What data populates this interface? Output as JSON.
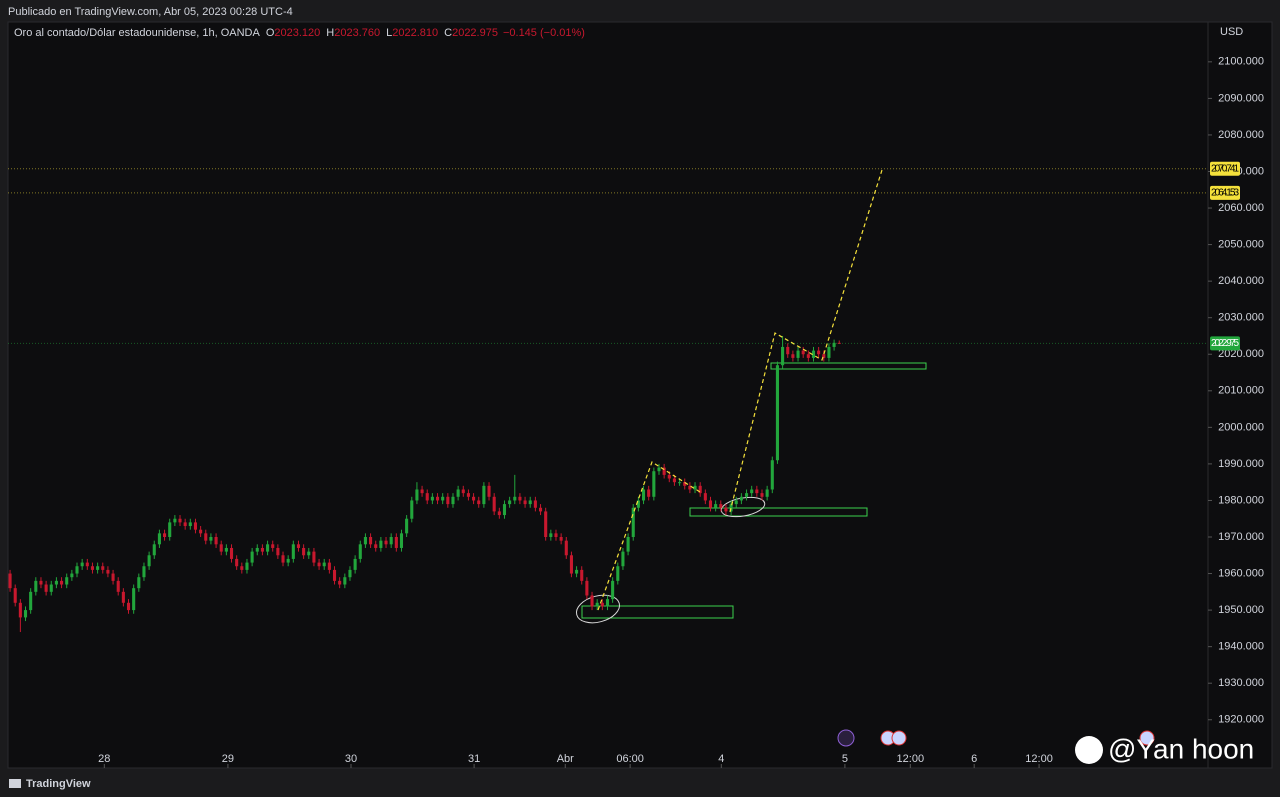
{
  "publisher_line": "Publicado en TradingView.com, Abr 05, 2023 00:28 UTC-4",
  "footer_brand": "TradingView",
  "watermark": "@Yan hoon",
  "chart_data": {
    "type": "candlestick",
    "symbol": "Oro al contado/Dólar estadounidense, 1h, OANDA",
    "ohlc_legend": [
      {
        "key": "O",
        "text": "2023.120"
      },
      {
        "key": "H",
        "text": "2023.760"
      },
      {
        "key": "L",
        "text": "2022.810"
      },
      {
        "key": "C",
        "text": "2022.975"
      }
    ],
    "change_text": "−0.145 (−0.01%)",
    "y_axis_label": "USD",
    "up_color": "#22a63c",
    "down_color": "#c8182e",
    "grid": false,
    "xlim": [
      -0.4,
      232.6
    ],
    "xticks": [
      {
        "value": 18.3,
        "label": "28"
      },
      {
        "value": 42.3,
        "label": "29"
      },
      {
        "value": 66.2,
        "label": "30"
      },
      {
        "value": 90.1,
        "label": "31"
      },
      {
        "value": 107.8,
        "label": "Abr"
      },
      {
        "value": 120.4,
        "label": "06:00"
      },
      {
        "value": 138.1,
        "label": "4"
      },
      {
        "value": 162.1,
        "label": "5"
      },
      {
        "value": 174.8,
        "label": "12:00"
      },
      {
        "value": 187.2,
        "label": "6"
      },
      {
        "value": 199.8,
        "label": "12:00"
      }
    ],
    "ylim": [
      1906.8,
      2110.9
    ],
    "yticks": [
      {
        "value": 1920,
        "label": "1920.000"
      },
      {
        "value": 1930,
        "label": "1930.000"
      },
      {
        "value": 1940,
        "label": "1940.000"
      },
      {
        "value": 1950,
        "label": "1950.000"
      },
      {
        "value": 1960,
        "label": "1960.000"
      },
      {
        "value": 1970,
        "label": "1970.000"
      },
      {
        "value": 1980,
        "label": "1980.000"
      },
      {
        "value": 1990,
        "label": "1990.000"
      },
      {
        "value": 2000,
        "label": "2000.000"
      },
      {
        "value": 2010,
        "label": "2010.000"
      },
      {
        "value": 2020,
        "label": "2020.000"
      },
      {
        "value": 2030,
        "label": "2030.000"
      },
      {
        "value": 2040,
        "label": "2040.000"
      },
      {
        "value": 2050,
        "label": "2050.000"
      },
      {
        "value": 2060,
        "label": "2060.000"
      },
      {
        "value": 2070,
        "label": "2070.000"
      },
      {
        "value": 2080,
        "label": "2080.000"
      },
      {
        "value": 2090,
        "label": "2090.000"
      },
      {
        "value": 2100,
        "label": "2100.000"
      }
    ],
    "price_lines": [
      {
        "value": 2070.741,
        "color": "#f5e13b"
      },
      {
        "value": 2064.153,
        "color": "#f5e13b"
      },
      {
        "value": 2022.975,
        "color": "#22a63c"
      }
    ],
    "open": [
      1960,
      1956,
      1952,
      1948,
      1950,
      1955,
      1958,
      1957,
      1955,
      1957,
      1958,
      1957,
      1959,
      1960,
      1962,
      1963,
      1962,
      1961,
      1962,
      1961,
      1960,
      1958,
      1955,
      1952,
      1950,
      1956,
      1959,
      1962,
      1965,
      1968,
      1971,
      1970,
      1974,
      1975,
      1974,
      1973,
      1974,
      1972,
      1971,
      1969,
      1970,
      1968,
      1966,
      1967,
      1964,
      1962,
      1961,
      1963,
      1966,
      1967,
      1966,
      1968,
      1967,
      1965,
      1963,
      1964,
      1968,
      1967,
      1965,
      1966,
      1963,
      1962,
      1963,
      1961,
      1958,
      1957,
      1959,
      1961,
      1964,
      1968,
      1970,
      1968,
      1967,
      1969,
      1968,
      1970,
      1967,
      1971,
      1975,
      1980,
      1983,
      1982,
      1980,
      1981,
      1980,
      1981,
      1979,
      1981,
      1983,
      1982,
      1981,
      1980,
      1979,
      1984,
      1981,
      1977,
      1976,
      1979,
      1980,
      1981,
      1980,
      1979,
      1980,
      1978,
      1977,
      1970,
      1971,
      1970,
      1969,
      1965,
      1960,
      1961,
      1958,
      1954,
      1951,
      1952,
      1951,
      1953,
      1958,
      1962,
      1966,
      1970,
      1978,
      1980,
      1983,
      1981,
      1988,
      1989,
      1987,
      1986,
      1985,
      1985,
      1984,
      1983,
      1984,
      1982,
      1980,
      1978,
      1979,
      1978,
      1977,
      1979,
      1980,
      1981,
      1982,
      1983,
      1982,
      1981,
      1983,
      1991,
      2017,
      2022,
      2020,
      2019,
      2021,
      2020,
      2019,
      2021,
      2020,
      2019,
      2022,
      2023.12
    ],
    "high": [
      1961,
      1957,
      1953,
      1951,
      1956,
      1959,
      1959,
      1958,
      1958,
      1959,
      1959,
      1960,
      1961,
      1963,
      1964,
      1964,
      1963,
      1963,
      1963,
      1962,
      1961,
      1959,
      1956,
      1953,
      1957,
      1960,
      1963,
      1966,
      1969,
      1972,
      1972,
      1975,
      1976,
      1976,
      1975,
      1975,
      1975,
      1973,
      1972,
      1971,
      1971,
      1969,
      1968,
      1968,
      1965,
      1963,
      1964,
      1967,
      1968,
      1968,
      1969,
      1969,
      1968,
      1966,
      1965,
      1969,
      1969,
      1968,
      1967,
      1967,
      1964,
      1964,
      1964,
      1962,
      1959,
      1960,
      1962,
      1965,
      1969,
      1971,
      1971,
      1969,
      1970,
      1970,
      1971,
      1971,
      1972,
      1976,
      1981,
      1985,
      1984,
      1983,
      1982,
      1982,
      1982,
      1982,
      1982,
      1984,
      1984,
      1983,
      1982,
      1981,
      1985,
      1985,
      1982,
      1978,
      1980,
      1981,
      1987,
      1982,
      1981,
      1981,
      1981,
      1979,
      1978,
      1972,
      1972,
      1971,
      1970,
      1966,
      1962,
      1962,
      1959,
      1955,
      1953,
      1953,
      1954,
      1959,
      1963,
      1967,
      1971,
      1979,
      1981,
      1984,
      1984,
      1989,
      1990,
      1990,
      1988,
      1987,
      1986,
      1986,
      1985,
      1985,
      1985,
      1983,
      1981,
      1980,
      1980,
      1979,
      1980,
      1981,
      1982,
      1983,
      1984,
      1984,
      1983,
      1984,
      1992,
      2018,
      2025,
      2023,
      2021,
      2022,
      2022,
      2021,
      2022,
      2022,
      2021,
      2023,
      2024,
      2023.76
    ],
    "low": [
      1955,
      1951,
      1944,
      1947,
      1949,
      1954,
      1956,
      1954,
      1954,
      1956,
      1956,
      1956,
      1958,
      1959,
      1961,
      1961,
      1960,
      1960,
      1960,
      1959,
      1957,
      1954,
      1951,
      1949,
      1949,
      1955,
      1958,
      1961,
      1964,
      1967,
      1969,
      1969,
      1973,
      1973,
      1972,
      1972,
      1971,
      1970,
      1968,
      1968,
      1967,
      1965,
      1965,
      1963,
      1961,
      1960,
      1960,
      1962,
      1965,
      1965,
      1965,
      1966,
      1964,
      1962,
      1962,
      1963,
      1966,
      1964,
      1964,
      1962,
      1961,
      1961,
      1960,
      1957,
      1956,
      1956,
      1958,
      1960,
      1963,
      1967,
      1967,
      1966,
      1966,
      1967,
      1967,
      1966,
      1966,
      1970,
      1974,
      1979,
      1981,
      1979,
      1979,
      1979,
      1979,
      1978,
      1978,
      1980,
      1981,
      1980,
      1979,
      1978,
      1978,
      1980,
      1976,
      1975,
      1975,
      1978,
      1979,
      1979,
      1978,
      1978,
      1977,
      1976,
      1969,
      1969,
      1969,
      1968,
      1964,
      1959,
      1959,
      1957,
      1953,
      1950,
      1950,
      1950,
      1950,
      1952,
      1957,
      1961,
      1965,
      1969,
      1977,
      1979,
      1980,
      1980,
      1987,
      1986,
      1985,
      1984,
      1984,
      1983,
      1982,
      1982,
      1981,
      1979,
      1977,
      1977,
      1977,
      1976,
      1976,
      1978,
      1979,
      1980,
      1981,
      1981,
      1980,
      1980,
      1982,
      1990,
      2016,
      2019,
      2018,
      2018,
      2019,
      2018,
      2018,
      2019,
      2018,
      2018,
      2021,
      2022.81
    ],
    "close": [
      1956,
      1952,
      1948,
      1950,
      1955,
      1958,
      1957,
      1955,
      1957,
      1958,
      1957,
      1959,
      1960,
      1962,
      1963,
      1962,
      1961,
      1962,
      1961,
      1960,
      1958,
      1955,
      1952,
      1950,
      1956,
      1959,
      1962,
      1965,
      1968,
      1971,
      1970,
      1974,
      1975,
      1974,
      1973,
      1974,
      1972,
      1971,
      1969,
      1970,
      1968,
      1966,
      1967,
      1964,
      1962,
      1961,
      1963,
      1966,
      1967,
      1966,
      1968,
      1967,
      1965,
      1963,
      1964,
      1968,
      1967,
      1965,
      1966,
      1963,
      1962,
      1963,
      1961,
      1958,
      1957,
      1959,
      1961,
      1964,
      1968,
      1970,
      1968,
      1967,
      1969,
      1968,
      1970,
      1967,
      1971,
      1975,
      1980,
      1983,
      1982,
      1980,
      1981,
      1980,
      1981,
      1979,
      1981,
      1983,
      1982,
      1981,
      1980,
      1979,
      1984,
      1981,
      1977,
      1976,
      1979,
      1980,
      1981,
      1980,
      1979,
      1980,
      1978,
      1977,
      1970,
      1971,
      1970,
      1969,
      1965,
      1960,
      1961,
      1958,
      1954,
      1951,
      1952,
      1951,
      1953,
      1958,
      1962,
      1966,
      1970,
      1978,
      1980,
      1983,
      1981,
      1988,
      1989,
      1987,
      1986,
      1985,
      1985,
      1984,
      1983,
      1984,
      1982,
      1980,
      1978,
      1979,
      1978,
      1977,
      1979,
      1980,
      1981,
      1982,
      1983,
      1982,
      1981,
      1983,
      1991,
      2017,
      2022,
      2020,
      2019,
      2021,
      2020,
      2019,
      2021,
      2020,
      2019,
      2022,
      2023.12,
      2022.975
    ]
  }
}
